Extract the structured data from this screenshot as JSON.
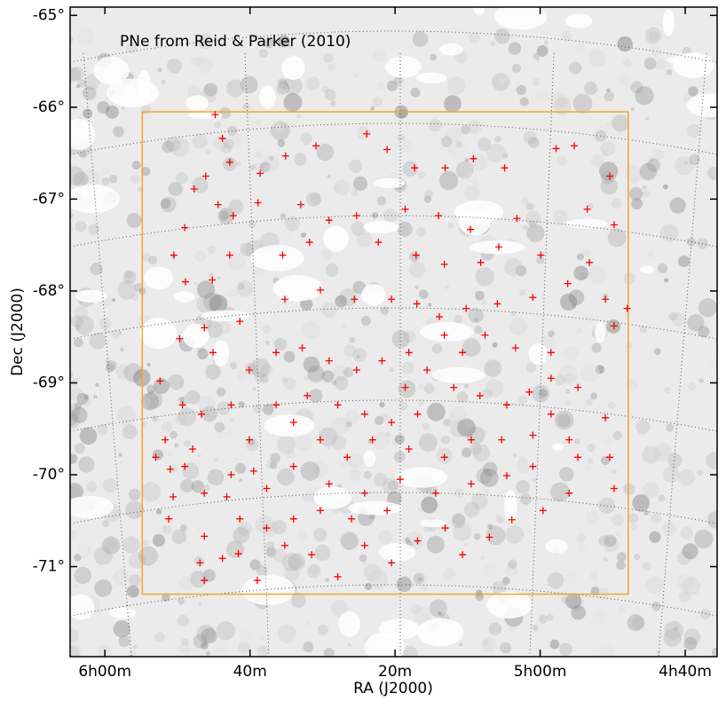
{
  "chart_data": {
    "type": "scatter",
    "title": "PNe from Reid & Parker (2010)",
    "xlabel": "RA (J2000)",
    "ylabel": "Dec (J2000)",
    "color": "#ff0000",
    "xlim": [
      364.8,
      275.6
    ],
    "ylim": [
      -71.98,
      -64.91
    ],
    "xticks": [
      {
        "value": 360,
        "label": "6h00m"
      },
      {
        "value": 340,
        "label": "40m"
      },
      {
        "value": 320,
        "label": "20m"
      },
      {
        "value": 300,
        "label": "5h00m"
      },
      {
        "value": 280,
        "label": "4h40m"
      }
    ],
    "yticks": [
      {
        "value": -65,
        "label": "-65°"
      },
      {
        "value": -66,
        "label": "-66°"
      },
      {
        "value": -67,
        "label": "-67°"
      },
      {
        "value": -68,
        "label": "-68°"
      },
      {
        "value": -69,
        "label": "-69°"
      },
      {
        "value": -70,
        "label": "-70°"
      },
      {
        "value": -71,
        "label": "-71°"
      }
    ],
    "box": {
      "x": [
        354.85,
        287.85
      ],
      "y": [
        -66.05,
        -71.3
      ],
      "color": "#f5a623"
    },
    "x": [
      344.8,
      343.8,
      342.8,
      346.1,
      347.7,
      344.4,
      338.6,
      335.1,
      330.9,
      323.9,
      321.1,
      317.3,
      313.1,
      309.2,
      304.9,
      297.8,
      295.3,
      290.4,
      293.5,
      289.8,
      303.2,
      305.7,
      309.6,
      314.0,
      318.6,
      325.3,
      329.1,
      333.0,
      338.9,
      342.3,
      349.0,
      350.5,
      342.8,
      348.9,
      345.2,
      335.5,
      331.8,
      322.3,
      317.1,
      313.2,
      308.2,
      299.9,
      293.2,
      296.2,
      291.0,
      288.0,
      289.8,
      301.0,
      305.9,
      310.2,
      313.9,
      317.0,
      320.5,
      325.6,
      330.3,
      335.2,
      341.4,
      346.3,
      349.7,
      345.1,
      352.4,
      349.3,
      346.7,
      351.7,
      347.9,
      351.0,
      353.0,
      350.6,
      351.2,
      346.3,
      343.2,
      342.6,
      339.5,
      337.7,
      346.3,
      346.9,
      343.8,
      341.6,
      346.3,
      339.0,
      335.2,
      331.5,
      327.9,
      324.2,
      320.5,
      316.9,
      313.1,
      310.7,
      307.0,
      303.9,
      299.6,
      296.0,
      289.8,
      290.4,
      296.0,
      301.0,
      305.3,
      309.5,
      313.2,
      318.1,
      323.1,
      326.6,
      330.3,
      334.0,
      336.4,
      332.1,
      327.9,
      324.2,
      320.5,
      316.9,
      318.6,
      315.6,
      311.9,
      308.3,
      304.6,
      301.5,
      298.5,
      294.8,
      291.0,
      298.5,
      310.7,
      307.6,
      303.4,
      298.5,
      313.2,
      318.1,
      321.8,
      325.3,
      329.1,
      332.8,
      336.4,
      340.1,
      342.6,
      340.1,
      334.0,
      329.1,
      324.2,
      319.3,
      314.4,
      309.5,
      304.6,
      301.0,
      294.8,
      334.0,
      330.3,
      326.0,
      321.1,
      341.4,
      337.7,
      349.0
    ],
    "y": [
      -66.08,
      -66.34,
      -66.6,
      -66.75,
      -66.89,
      -67.06,
      -66.72,
      -66.53,
      -66.42,
      -66.29,
      -66.46,
      -66.66,
      -66.66,
      -66.56,
      -66.66,
      -66.45,
      -66.42,
      -66.75,
      -67.11,
      -67.28,
      -67.21,
      -67.52,
      -67.33,
      -67.18,
      -67.11,
      -67.18,
      -67.23,
      -67.06,
      -67.04,
      -67.18,
      -67.31,
      -67.61,
      -67.61,
      -67.9,
      -67.88,
      -67.61,
      -67.47,
      -67.47,
      -67.61,
      -67.71,
      -67.69,
      -67.61,
      -67.69,
      -67.92,
      -68.09,
      -68.19,
      -68.38,
      -68.07,
      -68.14,
      -68.19,
      -68.28,
      -68.14,
      -68.09,
      -68.09,
      -67.99,
      -68.09,
      -68.33,
      -68.4,
      -68.52,
      -68.67,
      -68.98,
      -69.24,
      -69.34,
      -69.62,
      -69.72,
      -69.94,
      -69.81,
      -70.24,
      -70.48,
      -70.2,
      -70.24,
      -70.0,
      -69.96,
      -70.15,
      -70.67,
      -70.96,
      -70.91,
      -70.86,
      -71.15,
      -71.15,
      -70.77,
      -70.87,
      -71.11,
      -70.77,
      -70.96,
      -70.72,
      -70.58,
      -70.87,
      -70.68,
      -70.49,
      -70.39,
      -70.2,
      -70.15,
      -69.81,
      -69.62,
      -69.57,
      -69.62,
      -69.62,
      -69.81,
      -69.72,
      -69.62,
      -69.81,
      -69.62,
      -69.43,
      -69.24,
      -69.14,
      -69.24,
      -69.34,
      -69.43,
      -69.34,
      -69.05,
      -68.86,
      -69.05,
      -69.14,
      -69.24,
      -69.1,
      -68.95,
      -69.05,
      -69.38,
      -69.34,
      -68.67,
      -68.48,
      -68.62,
      -68.67,
      -68.48,
      -68.67,
      -68.76,
      -68.86,
      -68.76,
      -68.62,
      -68.67,
      -68.86,
      -69.24,
      -69.62,
      -69.91,
      -70.1,
      -70.2,
      -70.05,
      -70.2,
      -70.1,
      -70.01,
      -69.91,
      -69.81,
      -70.48,
      -70.39,
      -70.48,
      -70.39,
      -70.48,
      -70.58,
      -69.91
    ]
  }
}
